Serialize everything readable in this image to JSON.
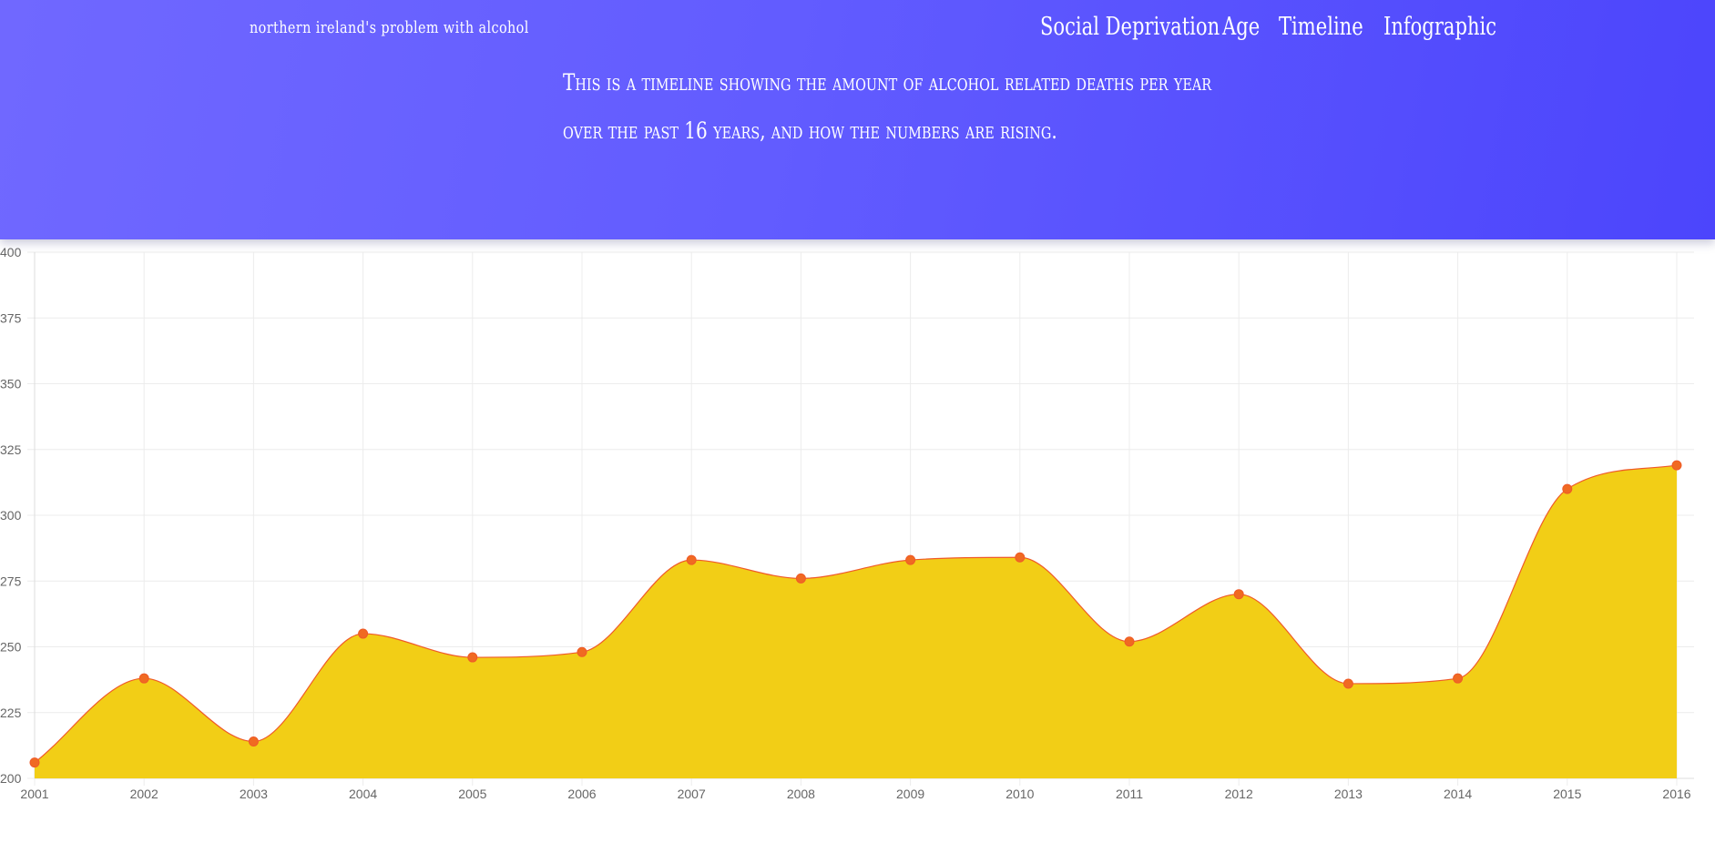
{
  "header": {
    "brand": "northern ireland's problem with alcohol",
    "nav": [
      "Social Deprivation",
      "Age",
      "Timeline",
      "Infographic"
    ],
    "intro_lines": [
      "This is a timeline showing the amount of alcohol related deaths per year",
      "over the past 16 years, and how the numbers are rising."
    ]
  },
  "colors": {
    "header_start": "#7068ff",
    "header_end": "#4c45fc",
    "area_fill": "#f2ce16",
    "line": "#ef5a28",
    "point": "#f06a22",
    "grid": "#ececec"
  },
  "chart_data": {
    "type": "area",
    "x": [
      "2001",
      "2002",
      "2003",
      "2004",
      "2005",
      "2006",
      "2007",
      "2008",
      "2009",
      "2010",
      "2011",
      "2012",
      "2013",
      "2014",
      "2015",
      "2016"
    ],
    "values": [
      206,
      238,
      214,
      255,
      246,
      248,
      283,
      276,
      283,
      284,
      252,
      270,
      236,
      238,
      310,
      319
    ],
    "ylim": [
      200,
      400
    ],
    "yticks": [
      200,
      225,
      250,
      275,
      300,
      325,
      350,
      375,
      400
    ],
    "title": "",
    "xlabel": "",
    "ylabel": "",
    "grid": true,
    "smooth": true
  }
}
